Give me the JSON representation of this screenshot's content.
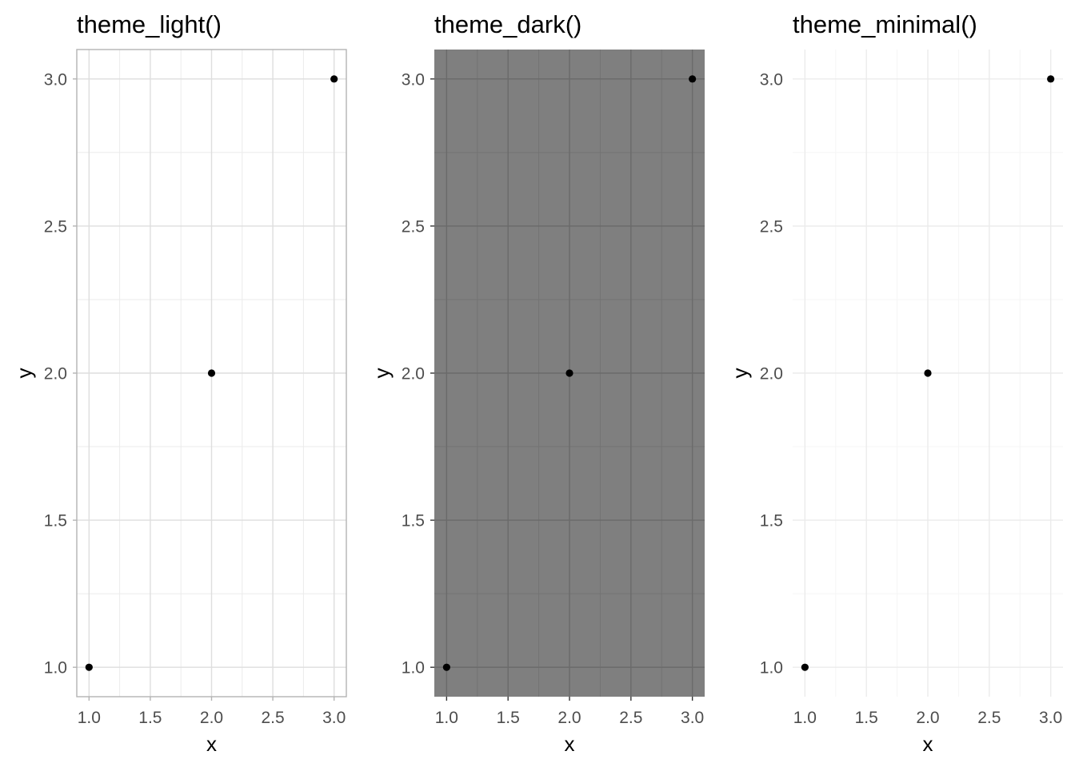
{
  "chart_data": [
    {
      "type": "scatter",
      "title": "theme_light()",
      "theme": "light",
      "xlabel": "x",
      "ylabel": "y",
      "x": [
        1,
        2,
        3
      ],
      "y": [
        1,
        2,
        3
      ],
      "xlim": [
        0.9,
        3.1
      ],
      "ylim": [
        0.9,
        3.1
      ],
      "xticks": [
        1.0,
        1.5,
        2.0,
        2.5,
        3.0
      ],
      "yticks": [
        1.0,
        1.5,
        2.0,
        2.5,
        3.0
      ],
      "xtick_labels": [
        "1.0",
        "1.5",
        "2.0",
        "2.5",
        "3.0"
      ],
      "ytick_labels": [
        "1.0",
        "1.5",
        "2.0",
        "2.5",
        "3.0"
      ],
      "grid": true,
      "colors": {
        "panel_bg": "#ffffff",
        "grid_major": "#dedede",
        "grid_minor": "#ebebeb",
        "border": "#b3b3b3",
        "ticks": "#b3b3b3",
        "point": "#000000"
      }
    },
    {
      "type": "scatter",
      "title": "theme_dark()",
      "theme": "dark",
      "xlabel": "x",
      "ylabel": "y",
      "x": [
        1,
        2,
        3
      ],
      "y": [
        1,
        2,
        3
      ],
      "xlim": [
        0.9,
        3.1
      ],
      "ylim": [
        0.9,
        3.1
      ],
      "xticks": [
        1.0,
        1.5,
        2.0,
        2.5,
        3.0
      ],
      "yticks": [
        1.0,
        1.5,
        2.0,
        2.5,
        3.0
      ],
      "xtick_labels": [
        "1.0",
        "1.5",
        "2.0",
        "2.5",
        "3.0"
      ],
      "ytick_labels": [
        "1.0",
        "1.5",
        "2.0",
        "2.5",
        "3.0"
      ],
      "grid": true,
      "colors": {
        "panel_bg": "#7f7f7f",
        "grid_major": "#6a6a6a",
        "grid_minor": "#737373",
        "border": "",
        "ticks": "#333333",
        "point": "#000000"
      }
    },
    {
      "type": "scatter",
      "title": "theme_minimal()",
      "theme": "minimal",
      "xlabel": "x",
      "ylabel": "y",
      "x": [
        1,
        2,
        3
      ],
      "y": [
        1,
        2,
        3
      ],
      "xlim": [
        0.9,
        3.1
      ],
      "ylim": [
        0.9,
        3.1
      ],
      "xticks": [
        1.0,
        1.5,
        2.0,
        2.5,
        3.0
      ],
      "yticks": [
        1.0,
        1.5,
        2.0,
        2.5,
        3.0
      ],
      "xtick_labels": [
        "1.0",
        "1.5",
        "2.0",
        "2.5",
        "3.0"
      ],
      "ytick_labels": [
        "1.0",
        "1.5",
        "2.0",
        "2.5",
        "3.0"
      ],
      "grid": true,
      "colors": {
        "panel_bg": "#ffffff",
        "grid_major": "#ebebeb",
        "grid_minor": "#f5f5f5",
        "border": "",
        "ticks": "",
        "point": "#000000"
      }
    }
  ]
}
